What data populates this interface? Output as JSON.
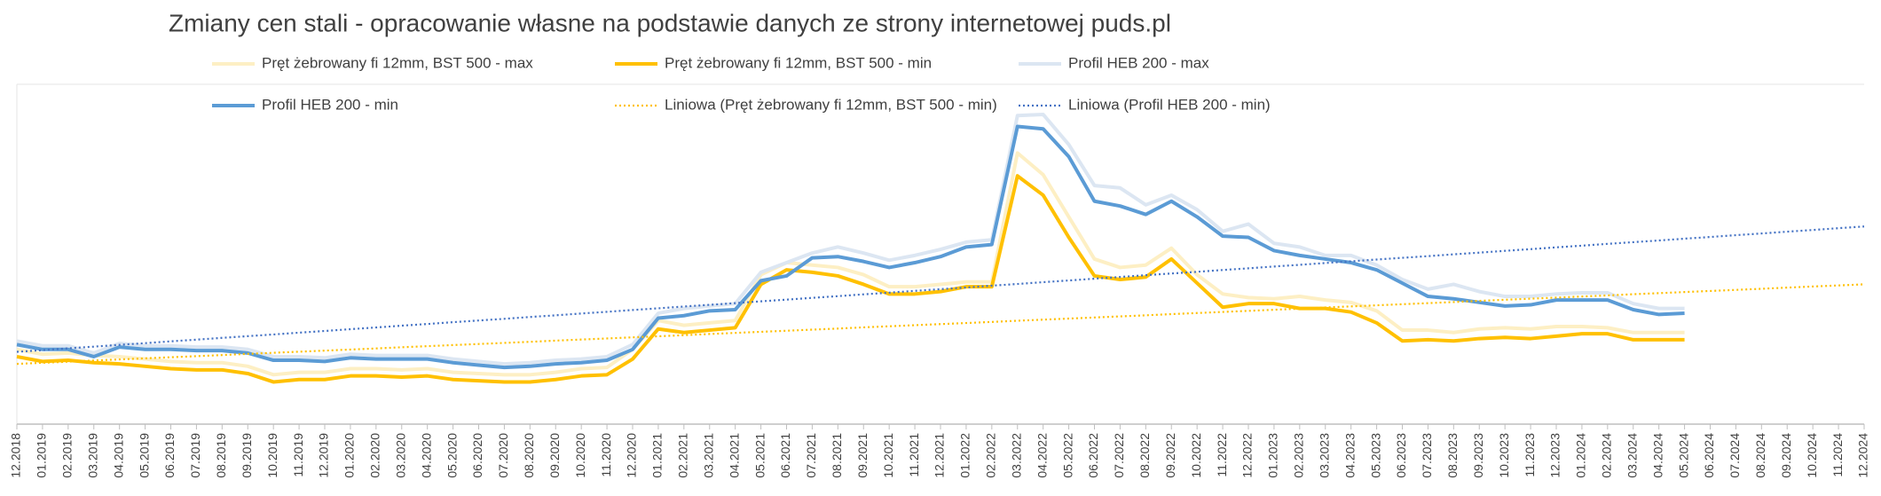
{
  "chart_data": {
    "type": "line",
    "title": "Zmiany cen stali - opracowanie własne na podstawie danych ze strony internetowej puds.pl",
    "categories": [
      "12.2018",
      "01.2019",
      "02.2019",
      "03.2019",
      "04.2019",
      "05.2019",
      "06.2019",
      "07.2019",
      "08.2019",
      "09.2019",
      "10.2019",
      "11.2019",
      "12.2019",
      "01.2020",
      "02.2020",
      "03.2020",
      "04.2020",
      "05.2020",
      "06.2020",
      "07.2020",
      "08.2020",
      "09.2020",
      "10.2020",
      "11.2020",
      "12.2020",
      "01.2021",
      "02.2021",
      "03.2021",
      "04.2021",
      "05.2021",
      "06.2021",
      "07.2021",
      "08.2021",
      "09.2021",
      "10.2021",
      "11.2021",
      "12.2021",
      "01.2022",
      "02.2022",
      "03.2022",
      "04.2022",
      "05.2022",
      "06.2022",
      "07.2022",
      "08.2022",
      "09.2022",
      "10.2022",
      "11.2022",
      "12.2022",
      "01.2023",
      "02.2023",
      "03.2023",
      "04.2023",
      "05.2023",
      "06.2023",
      "07.2023",
      "08.2023",
      "09.2023",
      "10.2023",
      "11.2023",
      "12.2023",
      "01.2024",
      "02.2024",
      "03.2024",
      "04.2024",
      "05.2024",
      "06.2024",
      "07.2024",
      "08.2024",
      "09.2024",
      "10.2024",
      "11.2024",
      "12.2024"
    ],
    "ylim": [
      0,
      282
    ],
    "series": [
      {
        "name": "Pręt żebrowany fi 12mm, BST 500 - max",
        "color": "#fdefc4",
        "style": "solid",
        "values": [
          62,
          58,
          59,
          57,
          56,
          54,
          52,
          51,
          51,
          48,
          41,
          43,
          43,
          46,
          46,
          45,
          46,
          43,
          42,
          41,
          41,
          43,
          46,
          47,
          62,
          86,
          82,
          84,
          86,
          124,
          134,
          132,
          130,
          124,
          114,
          114,
          116,
          118,
          118,
          225,
          207,
          172,
          137,
          130,
          132,
          146,
          124,
          108,
          105,
          104,
          106,
          103,
          101,
          94,
          78,
          78,
          76,
          79,
          80,
          79,
          81,
          81,
          80,
          76,
          76,
          76,
          null,
          null,
          null,
          null,
          null,
          null,
          null
        ]
      },
      {
        "name": "Pręt żebrowany fi 12mm, BST 500 - min",
        "color": "#ffc000",
        "style": "solid",
        "values": [
          56,
          52,
          53,
          51,
          50,
          48,
          46,
          45,
          45,
          42,
          35,
          37,
          37,
          40,
          40,
          39,
          40,
          37,
          36,
          35,
          35,
          37,
          40,
          41,
          54,
          79,
          76,
          78,
          80,
          116,
          128,
          126,
          123,
          116,
          108,
          108,
          110,
          114,
          114,
          206,
          190,
          155,
          123,
          120,
          122,
          137,
          117,
          97,
          100,
          100,
          96,
          96,
          93,
          84,
          69,
          70,
          69,
          71,
          72,
          71,
          73,
          75,
          75,
          70,
          70,
          70,
          null,
          null,
          null,
          null,
          null,
          null,
          null
        ]
      },
      {
        "name": "Profil HEB 200 - max",
        "color": "#dce6f2",
        "style": "solid",
        "values": [
          69,
          65,
          65,
          59,
          67,
          65,
          65,
          64,
          64,
          62,
          56,
          56,
          55,
          58,
          57,
          57,
          57,
          54,
          52,
          50,
          51,
          53,
          54,
          56,
          66,
          92,
          96,
          98,
          100,
          126,
          134,
          142,
          147,
          142,
          136,
          140,
          145,
          151,
          153,
          256,
          257,
          232,
          198,
          196,
          182,
          190,
          178,
          160,
          166,
          150,
          147,
          140,
          140,
          132,
          120,
          112,
          116,
          110,
          106,
          106,
          108,
          109,
          109,
          100,
          96,
          96,
          null,
          null,
          null,
          null,
          null,
          null,
          null
        ]
      },
      {
        "name": "Profil HEB 200 - min",
        "color": "#5b9bd5",
        "style": "solid",
        "values": [
          66,
          62,
          62,
          56,
          64,
          62,
          62,
          61,
          61,
          59,
          53,
          53,
          52,
          55,
          54,
          54,
          54,
          51,
          49,
          47,
          48,
          50,
          51,
          53,
          62,
          88,
          90,
          94,
          95,
          119,
          123,
          138,
          139,
          135,
          130,
          134,
          139,
          147,
          149,
          247,
          245,
          222,
          185,
          181,
          174,
          185,
          172,
          156,
          155,
          144,
          140,
          137,
          134,
          128,
          117,
          106,
          104,
          101,
          98,
          99,
          103,
          103,
          103,
          95,
          91,
          92,
          null,
          null,
          null,
          null,
          null,
          null,
          null
        ]
      },
      {
        "name": "Liniowa (Pręt żebrowany fi 12mm, BST 500 - min)",
        "color": "#ffc000",
        "style": "dotted",
        "values": [
          50,
          50.9,
          51.8,
          52.8,
          53.7,
          54.6,
          55.5,
          56.4,
          57.3,
          58.3,
          59.2,
          60.1,
          61,
          61.9,
          62.8,
          63.8,
          64.7,
          65.6,
          66.5,
          67.4,
          68.3,
          69.3,
          70.2,
          71.1,
          72,
          72.9,
          73.8,
          74.8,
          75.7,
          76.6,
          77.5,
          78.4,
          79.3,
          80.3,
          81.2,
          82.1,
          83,
          83.9,
          84.8,
          85.8,
          86.7,
          87.6,
          88.5,
          89.4,
          90.3,
          91.3,
          92.2,
          93.1,
          94,
          94.9,
          95.8,
          96.8,
          97.7,
          98.6,
          99.5,
          100.4,
          101.3,
          102.3,
          103.2,
          104.1,
          105,
          105.9,
          106.8,
          107.8,
          108.7,
          109.6,
          110.5,
          111.4,
          112.3,
          113.3,
          114.2,
          115.1,
          116
        ]
      },
      {
        "name": "Liniowa (Profil HEB 200 - min)",
        "color": "#4472c4",
        "style": "dotted",
        "values": [
          60,
          61.4,
          62.9,
          64.3,
          65.8,
          67.2,
          68.7,
          70.1,
          71.6,
          73,
          74.4,
          75.9,
          77.3,
          78.8,
          80.2,
          81.7,
          83.1,
          84.6,
          86,
          87.4,
          88.9,
          90.3,
          91.8,
          93.2,
          94.7,
          96.1,
          97.6,
          99,
          100.4,
          101.9,
          103.3,
          104.8,
          106.2,
          107.7,
          109.1,
          110.6,
          112,
          113.4,
          114.9,
          116.3,
          117.8,
          119.2,
          120.7,
          122.1,
          123.6,
          125,
          126.4,
          127.9,
          129.3,
          130.8,
          132.2,
          133.7,
          135.1,
          136.6,
          138,
          139.4,
          140.9,
          142.3,
          143.8,
          145.2,
          146.7,
          148.1,
          149.6,
          151,
          152.4,
          153.9,
          155.3,
          156.8,
          158.2,
          159.7,
          161.1,
          162.6,
          164
        ]
      }
    ]
  }
}
